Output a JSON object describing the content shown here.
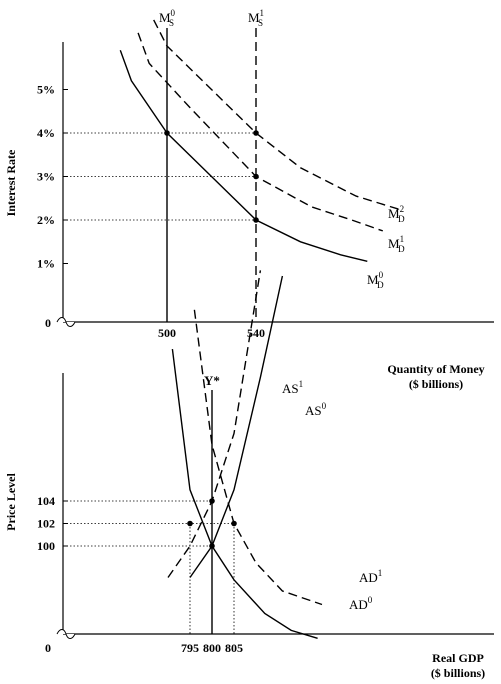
{
  "chart_data": [
    {
      "type": "line",
      "xlabel_line1": "Quantity of Money",
      "xlabel_line2": "($ billions)",
      "ylabel": "Interest Rate",
      "origin_label": "0",
      "ylim": [
        0,
        6
      ],
      "xlim": [
        420,
        660
      ],
      "y_ticks": [
        {
          "value": 1,
          "label": "1%"
        },
        {
          "value": 2,
          "label": "2%"
        },
        {
          "value": 3,
          "label": "3%"
        },
        {
          "value": 4,
          "label": "4%"
        },
        {
          "value": 5,
          "label": "5%"
        }
      ],
      "x_ticks": [
        {
          "value": 500,
          "label": "500"
        },
        {
          "value": 540,
          "label": "540"
        }
      ],
      "supply_lines": [
        {
          "base": "M",
          "sub": "S",
          "sup": "0",
          "x": 500,
          "style": "solid"
        },
        {
          "base": "M",
          "sub": "S",
          "sup": "1",
          "x": 540,
          "style": "dashed"
        }
      ],
      "demand_curves": [
        {
          "base": "M",
          "sub": "D",
          "sup": "0",
          "style": "solid",
          "points": [
            [
              479,
              5.9
            ],
            [
              484,
              5.2
            ],
            [
              500,
              4.0
            ],
            [
              520,
              3.0
            ],
            [
              540,
              2.0
            ],
            [
              560,
              1.5
            ],
            [
              578,
              1.2
            ],
            [
              590,
              1.05
            ]
          ]
        },
        {
          "base": "M",
          "sub": "D",
          "sup": "1",
          "style": "dashed",
          "points": [
            [
              487,
              6.3
            ],
            [
              492,
              5.6
            ],
            [
              510,
              4.6
            ],
            [
              540,
              3.0
            ],
            [
              565,
              2.3
            ],
            [
              583,
              2.0
            ],
            [
              597,
              1.75
            ]
          ]
        },
        {
          "base": "M",
          "sub": "D",
          "sup": "2",
          "style": "dashed",
          "points": [
            [
              494,
              6.6
            ],
            [
              500,
              6.0
            ],
            [
              520,
              5.0
            ],
            [
              540,
              4.0
            ],
            [
              560,
              3.2
            ],
            [
              585,
              2.55
            ],
            [
              604,
              2.25
            ]
          ]
        }
      ],
      "equilibria": [
        [
          500,
          4.0
        ],
        [
          540,
          4.0
        ],
        [
          540,
          3.0
        ],
        [
          540,
          2.0
        ]
      ]
    },
    {
      "type": "line",
      "xlabel_line1": "Real GDP",
      "xlabel_line2": "($ billions)",
      "ylabel": "Price Level",
      "origin_label": "0",
      "ylim": [
        80,
        126
      ],
      "xlim": [
        780,
        835
      ],
      "y_ticks": [
        {
          "value": 100,
          "label": "100"
        },
        {
          "value": 102,
          "label": "102"
        },
        {
          "value": 104,
          "label": "104"
        }
      ],
      "x_ticks": [
        {
          "value": 795,
          "label": "795"
        },
        {
          "value": 800,
          "label": "800"
        },
        {
          "value": 805,
          "label": "805"
        }
      ],
      "potential_output": {
        "label": "Y*",
        "x": 800
      },
      "supply_curves": [
        {
          "base": "AS",
          "sup": "0",
          "style": "solid",
          "points": [
            [
              795,
              97.2
            ],
            [
              800,
              100.0
            ],
            [
              805,
              105.0
            ],
            [
              811,
              115.0
            ],
            [
              816,
              124.0
            ]
          ]
        },
        {
          "base": "AS",
          "sup": "1",
          "style": "dashed",
          "points": [
            [
              790,
              97.2
            ],
            [
              795,
              100.0
            ],
            [
              800,
              104.0
            ],
            [
              805,
              110.0
            ],
            [
              811,
              124.5
            ]
          ]
        }
      ],
      "demand_curves": [
        {
          "base": "AD",
          "sup": "0",
          "style": "solid",
          "points": [
            [
              791,
              117.5
            ],
            [
              795,
              105.0
            ],
            [
              800,
              100.0
            ],
            [
              805,
              97.0
            ],
            [
              812,
              94.0
            ],
            [
              818,
              92.5
            ],
            [
              824,
              91.8
            ]
          ]
        },
        {
          "base": "AD",
          "sup": "1",
          "style": "dashed",
          "points": [
            [
              796,
              121.0
            ],
            [
              800,
              109.0
            ],
            [
              805,
              102.0
            ],
            [
              810,
              98.5
            ],
            [
              816,
              96.0
            ],
            [
              825,
              94.8
            ]
          ]
        }
      ],
      "equilibria": [
        [
          795,
          102
        ],
        [
          800,
          104
        ],
        [
          800,
          100
        ],
        [
          805,
          102
        ]
      ]
    }
  ]
}
